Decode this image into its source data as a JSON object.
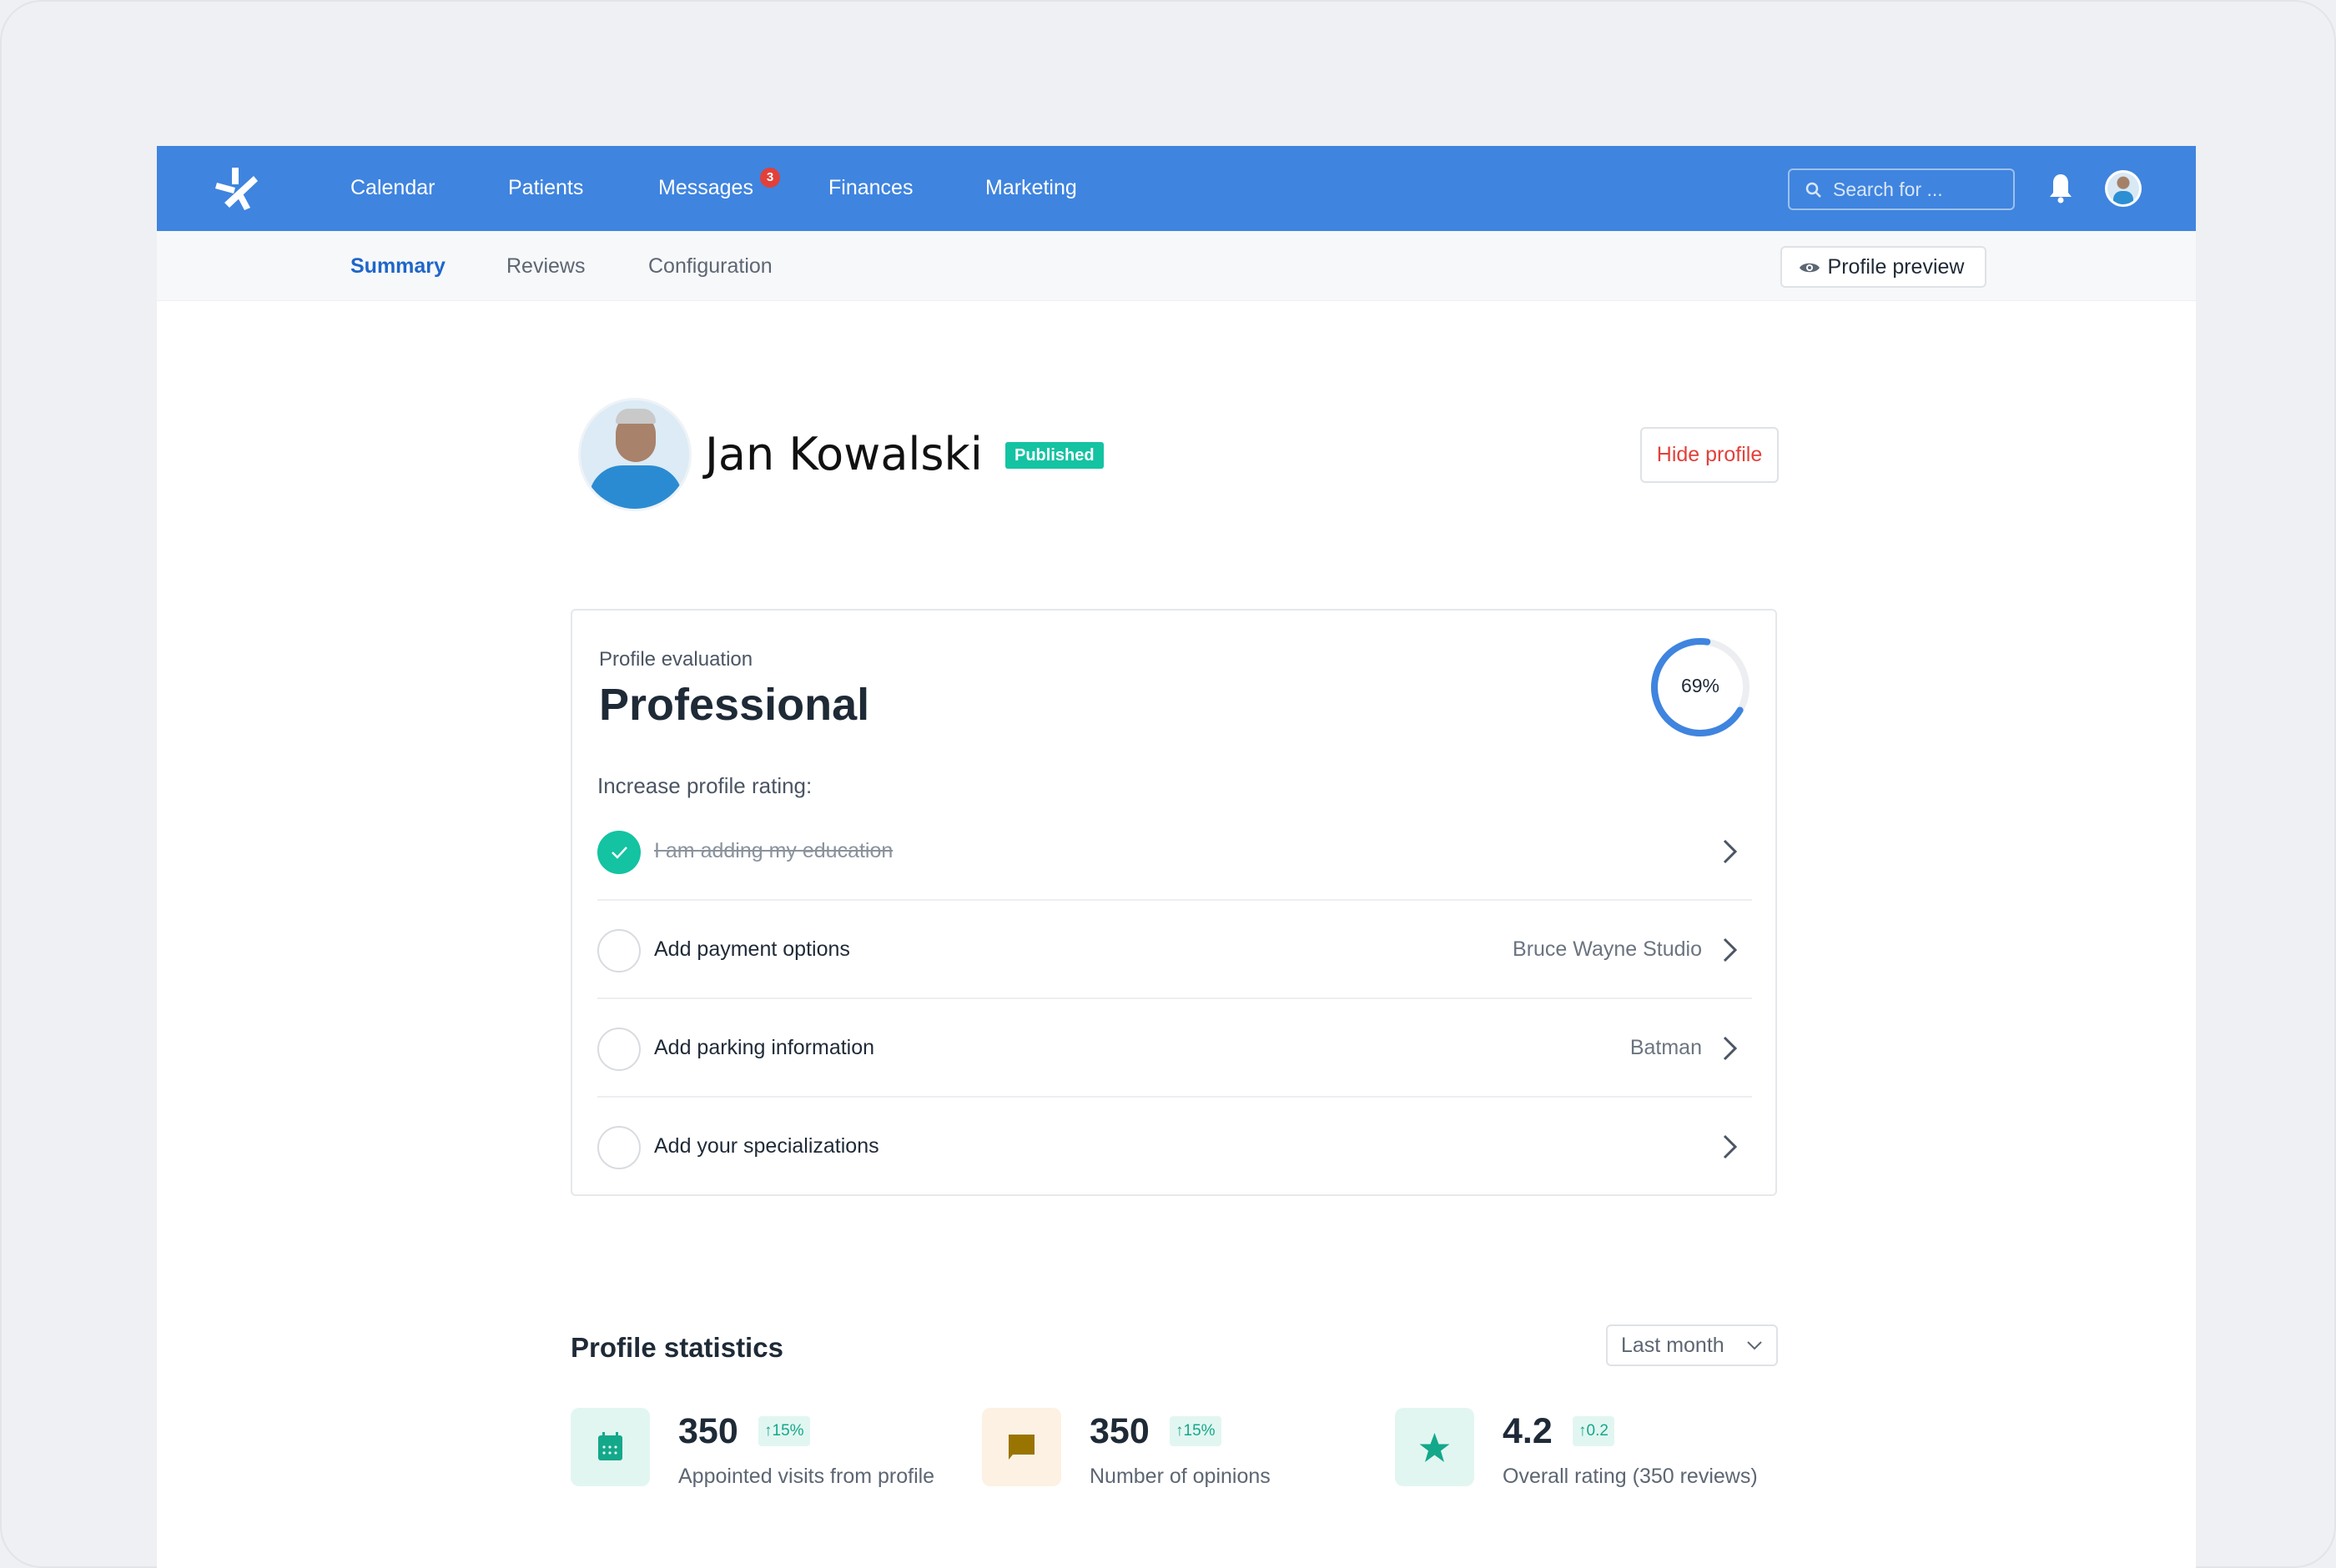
{
  "colors": {
    "nav": "#3f84df",
    "accent_text": "#1f66c9",
    "success": "#14c3a2",
    "danger": "#e2403a"
  },
  "nav": {
    "items": [
      "Calendar",
      "Patients",
      "Messages",
      "Finances",
      "Marketing"
    ],
    "messages_badge": "3",
    "search_placeholder": "Search for ..."
  },
  "subnav": {
    "tabs": [
      "Summary",
      "Reviews",
      "Configuration"
    ],
    "active": "Summary",
    "preview_label": "Profile preview"
  },
  "profile": {
    "name": "Jan Kowalski",
    "status": "Published",
    "hide_label": "Hide profile"
  },
  "evaluation": {
    "caption": "Profile evaluation",
    "level": "Professional",
    "percent_label": "69%",
    "percent": 69,
    "prompt": "Increase profile rating:",
    "items": [
      {
        "label": "I am adding my education",
        "done": true,
        "detail": ""
      },
      {
        "label": "Add payment options",
        "done": false,
        "detail": "Bruce Wayne Studio"
      },
      {
        "label": "Add parking information",
        "done": false,
        "detail": "Batman"
      },
      {
        "label": "Add your specializations",
        "done": false,
        "detail": ""
      }
    ]
  },
  "statistics": {
    "title": "Profile statistics",
    "period": "Last month",
    "items": [
      {
        "value": "350",
        "delta": "15%",
        "label": "Appointed visits from profile",
        "icon": "calendar-icon"
      },
      {
        "value": "350",
        "delta": "15%",
        "label": "Number of opinions",
        "icon": "chat-icon"
      },
      {
        "value": "4.2",
        "delta": "0.2",
        "label": "Overall rating (350 reviews)",
        "icon": "star-icon"
      }
    ]
  }
}
